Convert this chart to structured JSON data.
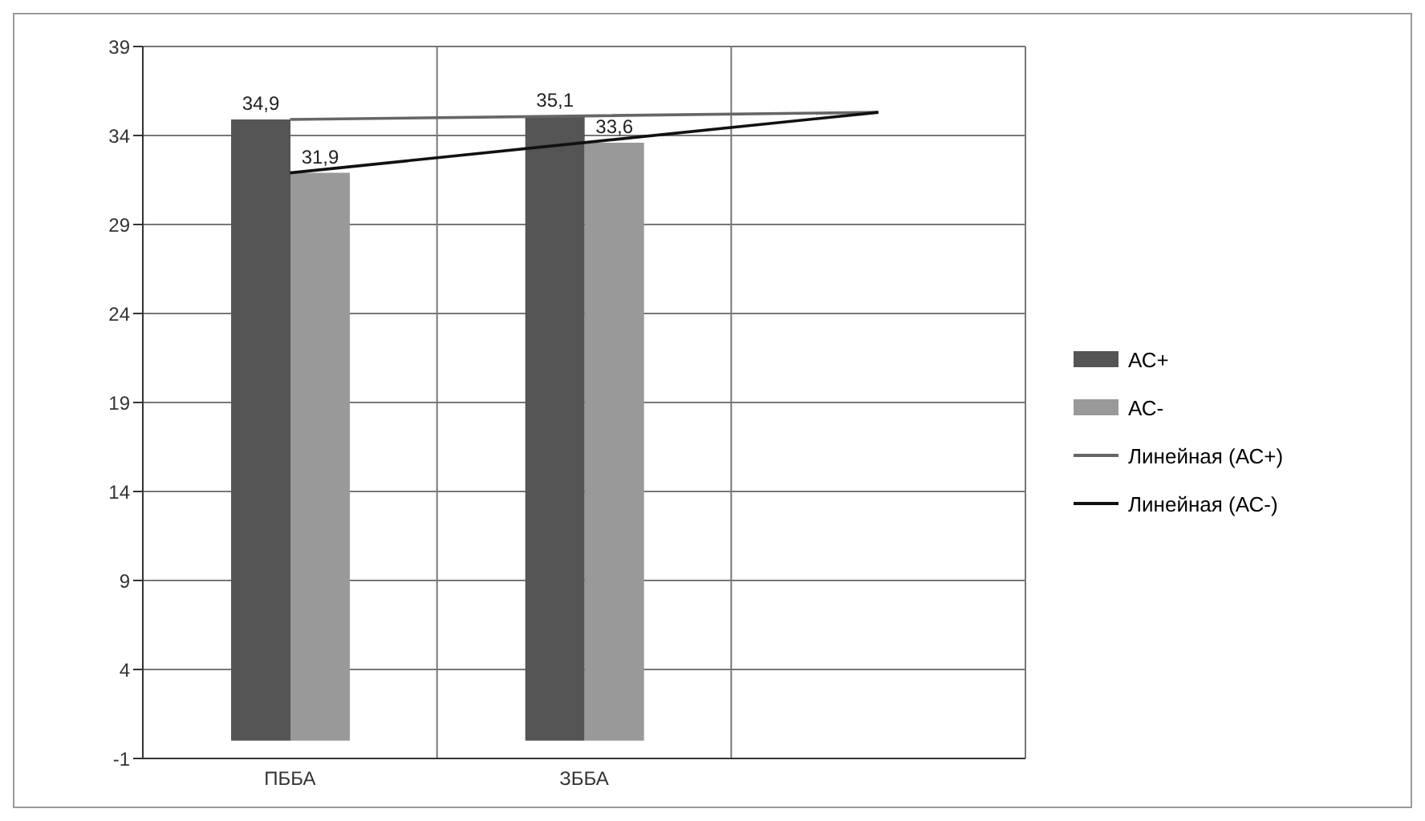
{
  "chart_data": {
    "type": "bar",
    "categories": [
      "ПББА",
      "ЗББА",
      null
    ],
    "series": [
      {
        "name": "АС+",
        "color": "#555555",
        "values": [
          34.9,
          35.1,
          null
        ],
        "value_labels": [
          "34,9",
          "35,1",
          null
        ]
      },
      {
        "name": "АС-",
        "color": "#999999",
        "values": [
          31.9,
          33.6,
          null
        ],
        "value_labels": [
          "31,9",
          "33,6",
          null
        ]
      },
      {
        "name": "Линейная (АС+)",
        "type": "line",
        "color": "#666666",
        "values": [
          34.9,
          35.1,
          35.3
        ]
      },
      {
        "name": "Линейная (АС-)",
        "type": "line",
        "color": "#111111",
        "values": [
          31.9,
          33.6,
          35.3
        ]
      }
    ],
    "ylim": [
      -1,
      39
    ],
    "yticks": [
      -1,
      4,
      9,
      14,
      19,
      24,
      29,
      34,
      39
    ],
    "grid": true,
    "legend": "right",
    "marker": "none",
    "line_style": "solid"
  }
}
